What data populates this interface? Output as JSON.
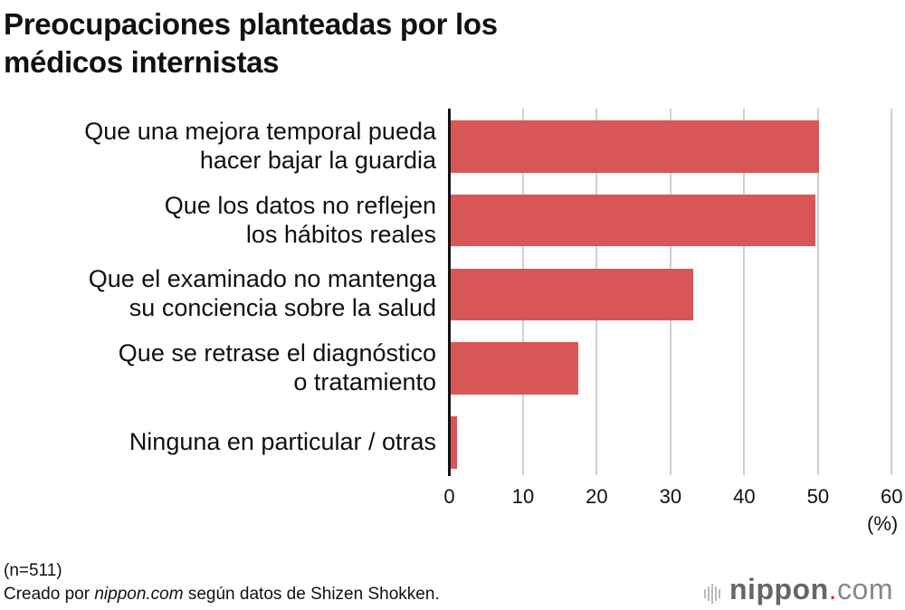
{
  "chart_data": {
    "type": "bar",
    "orientation": "horizontal",
    "title": "Preocupaciones planteadas por los médicos internistas",
    "title_lines": [
      "Preocupaciones planteadas por los",
      "médicos internistas"
    ],
    "categories": [
      [
        "Que una mejora temporal pueda",
        "hacer bajar la guardia"
      ],
      [
        "Que los datos no reflejen",
        "los hábitos reales"
      ],
      [
        "Que el examinado no mantenga",
        "su conciencia sobre la salud"
      ],
      [
        "Que se retrase el diagnóstico",
        "o tratamiento"
      ],
      [
        "Ninguna en particular / otras"
      ]
    ],
    "values": [
      50.1,
      49.7,
      33.1,
      17.5,
      1.0
    ],
    "xlim": [
      0,
      60
    ],
    "xticks": [
      "0",
      "10",
      "20",
      "30",
      "40",
      "50",
      "60"
    ],
    "xlabel": "(%)",
    "grid": true,
    "bar_color": "#d95656"
  },
  "footer": {
    "sample": "(n=511)",
    "credit_prefix": "Creado por ",
    "credit_site": "nippon.com",
    "credit_suffix": " según datos de Shizen Shokken."
  },
  "logo": {
    "name": "nippon",
    "dot": ".",
    "tld": "com"
  }
}
